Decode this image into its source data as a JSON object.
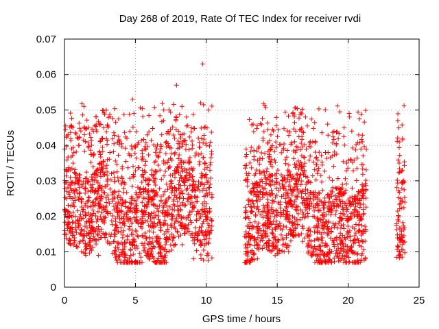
{
  "chart_data": {
    "type": "scatter",
    "title": "Day 268 of 2019, Rate Of TEC Index for receiver rvdi",
    "xlabel": "GPS time / hours",
    "ylabel": "ROTI / TECUs",
    "xlim": [
      0,
      25
    ],
    "ylim": [
      0,
      0.07
    ],
    "x_ticks": [
      "0",
      "5",
      "10",
      "15",
      "20",
      "25"
    ],
    "y_ticks": [
      "0",
      "0.01",
      "0.02",
      "0.03",
      "0.04",
      "0.05",
      "0.06",
      "0.07"
    ],
    "grid": true,
    "marker": "plus",
    "series_color": "#ff0000",
    "series": [
      {
        "name": "ROTI",
        "segments": [
          {
            "x_start": 0.0,
            "x_end": 10.4
          },
          {
            "x_start": 12.7,
            "x_end": 21.3
          },
          {
            "x_start": 23.4,
            "x_end": 24.0
          }
        ],
        "x": [
          0.05,
          0.15,
          0.25,
          0.35,
          0.45,
          0.6,
          0.8,
          1.0,
          1.2,
          1.5,
          1.8,
          2.1,
          2.4,
          2.8,
          2.95,
          3.2,
          3.5,
          3.8,
          4.1,
          4.4,
          4.7,
          4.8,
          4.9,
          5.2,
          5.5,
          5.9,
          6.2,
          6.5,
          6.8,
          7.0,
          7.1,
          7.3,
          7.6,
          7.9,
          8.1,
          8.3,
          8.6,
          8.9,
          9.1,
          9.2,
          9.4,
          9.6,
          9.75,
          9.85,
          9.95,
          10.05,
          10.15,
          10.25,
          10.35,
          12.8,
          13.0,
          13.3,
          13.6,
          13.8,
          14.0,
          14.3,
          14.6,
          14.9,
          15.2,
          15.5,
          15.8,
          16.1,
          16.3,
          16.6,
          16.9,
          17.2,
          17.5,
          17.8,
          18.1,
          18.4,
          18.7,
          19.0,
          19.3,
          19.6,
          19.9,
          20.1,
          20.3,
          20.6,
          20.9,
          21.2,
          23.5,
          23.6,
          23.7,
          23.8,
          23.9
        ],
        "y": [
          0.015,
          0.025,
          0.043,
          0.02,
          0.012,
          0.035,
          0.018,
          0.04,
          0.01,
          0.028,
          0.013,
          0.032,
          0.009,
          0.022,
          0.05,
          0.038,
          0.015,
          0.03,
          0.012,
          0.042,
          0.025,
          0.053,
          0.049,
          0.018,
          0.033,
          0.01,
          0.027,
          0.039,
          0.016,
          0.05,
          0.035,
          0.044,
          0.022,
          0.057,
          0.03,
          0.012,
          0.048,
          0.025,
          0.008,
          0.037,
          0.015,
          0.052,
          0.063,
          0.045,
          0.02,
          0.009,
          0.05,
          0.033,
          0.016,
          0.015,
          0.032,
          0.046,
          0.008,
          0.027,
          0.042,
          0.018,
          0.036,
          0.011,
          0.024,
          0.031,
          0.01,
          0.049,
          0.044,
          0.019,
          0.033,
          0.012,
          0.041,
          0.026,
          0.015,
          0.038,
          0.022,
          0.044,
          0.011,
          0.029,
          0.035,
          0.048,
          0.017,
          0.025,
          0.039,
          0.008,
          0.047,
          0.035,
          0.025,
          0.012,
          0.03
        ]
      }
    ]
  }
}
